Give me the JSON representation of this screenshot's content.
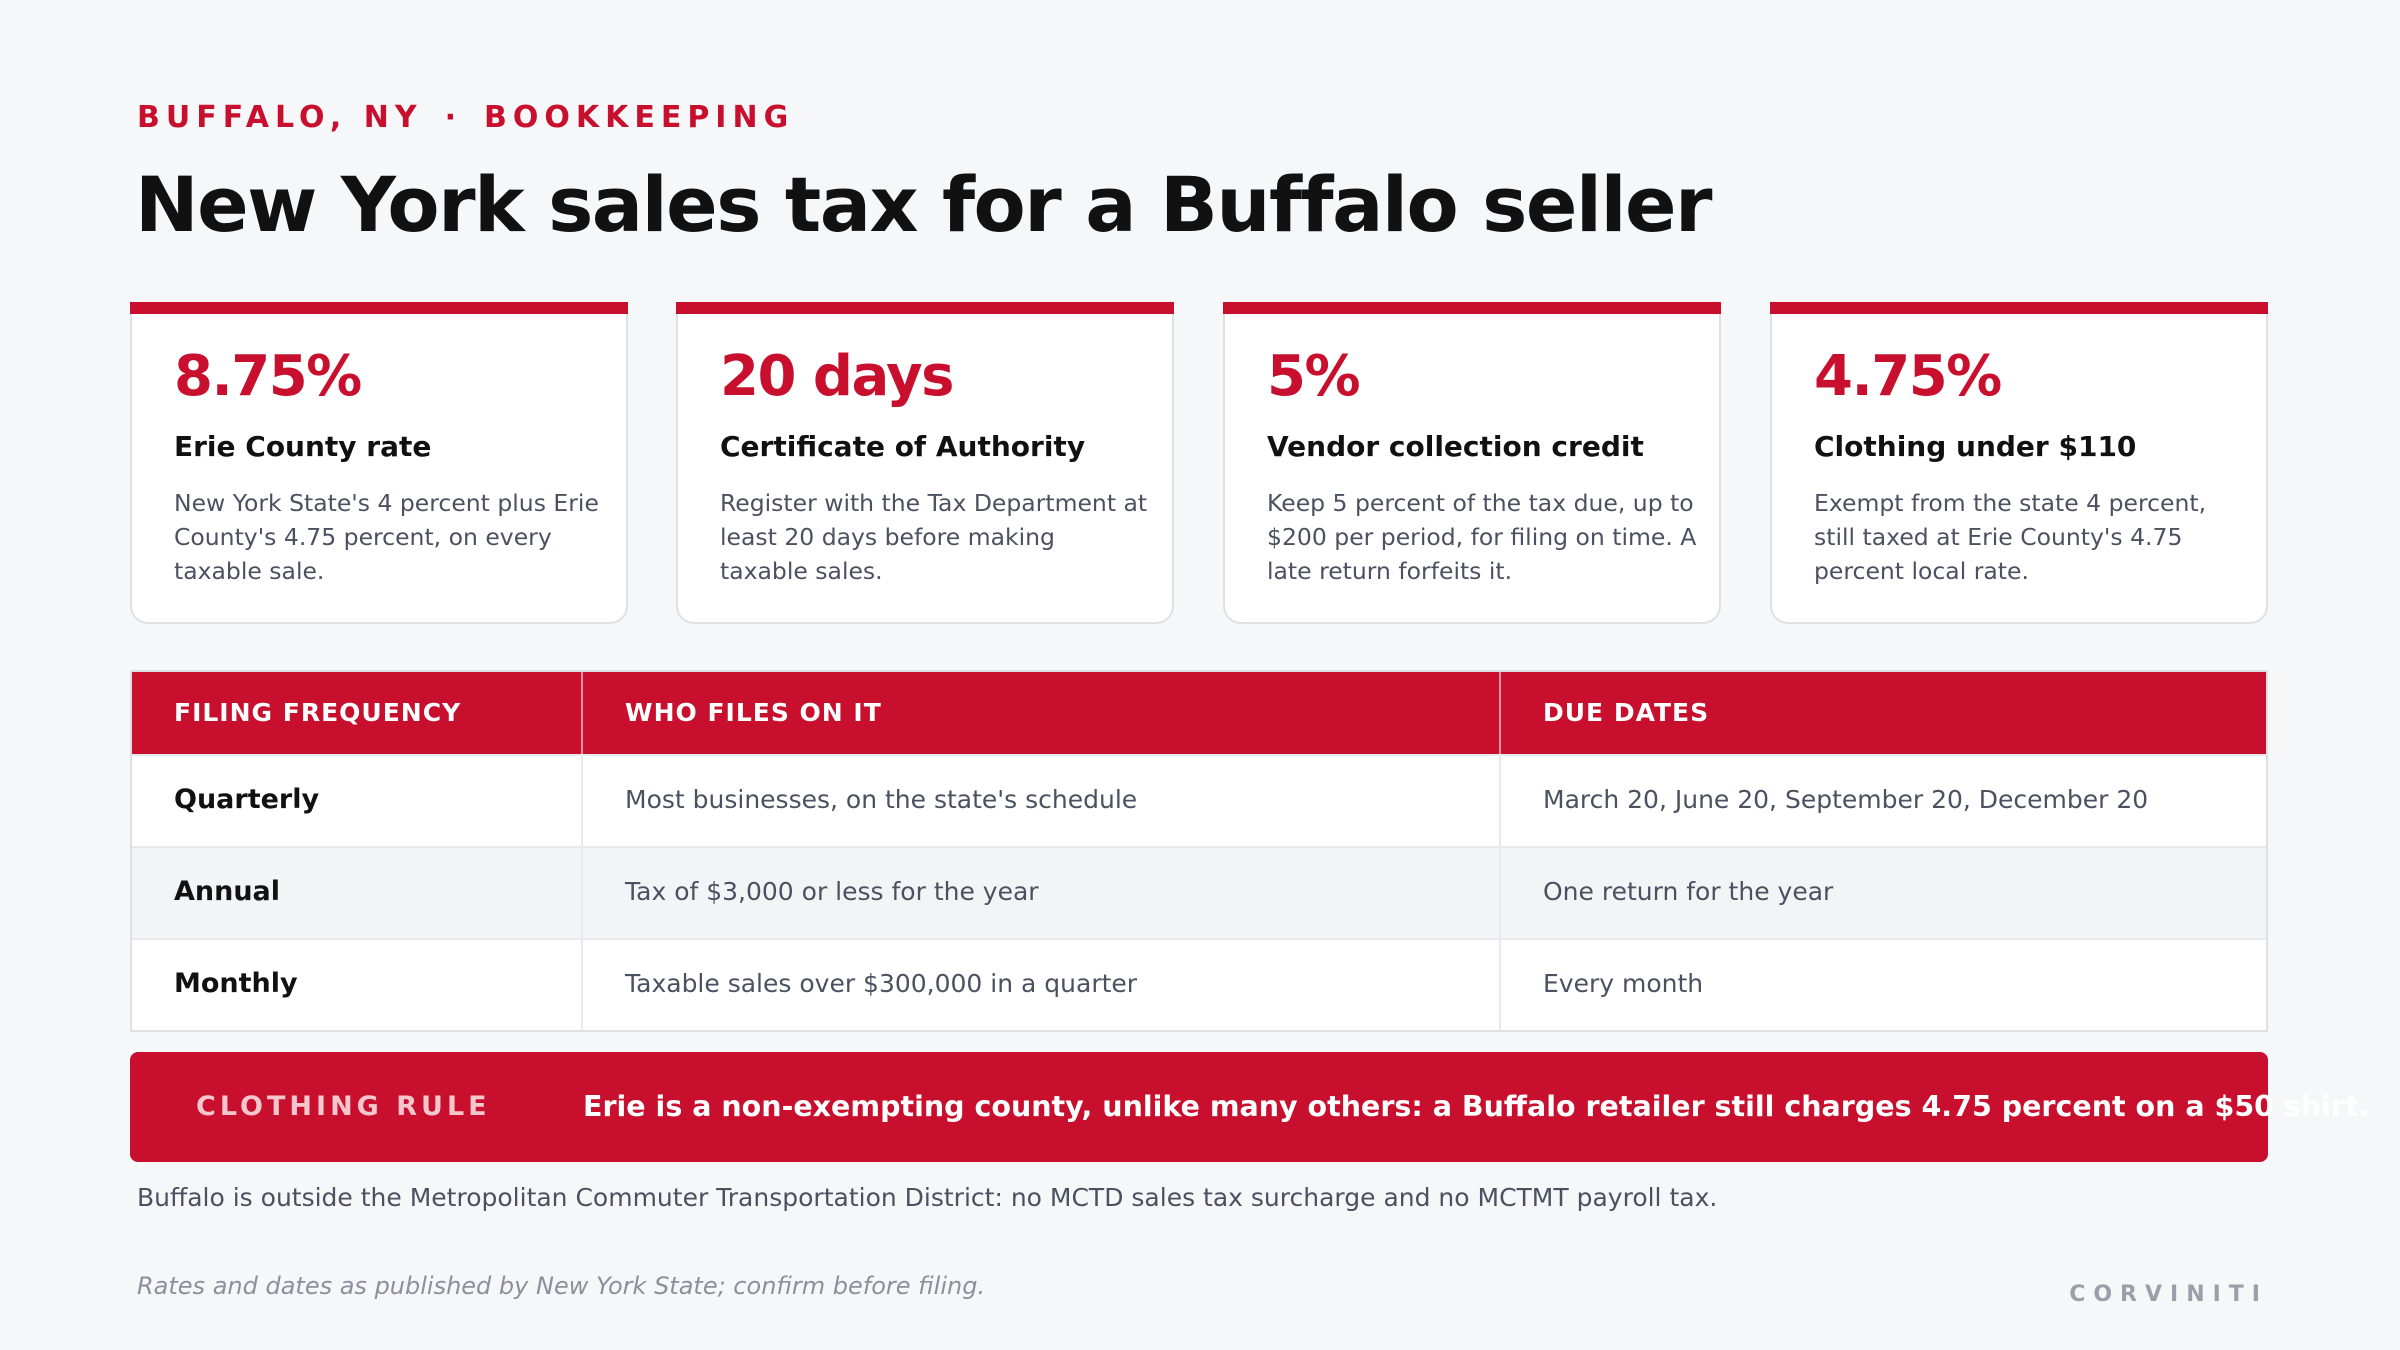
{
  "header": {
    "eyebrow_location": "BUFFALO, NY",
    "eyebrow_separator": "·",
    "eyebrow_topic": "BOOKKEEPING",
    "title": "New York sales tax for a Buffalo seller"
  },
  "cards": [
    {
      "stat": "8.75%",
      "heading": "Erie County rate",
      "body": "New York State's 4 percent plus Erie County's 4.75 percent, on every taxable sale."
    },
    {
      "stat": "20 days",
      "heading": "Certificate of Authority",
      "body": "Register with the Tax Department at least 20 days before making taxable sales."
    },
    {
      "stat": "5%",
      "heading": "Vendor collection credit",
      "body": "Keep 5 percent of the tax due, up to $200 per period, for filing on time. A late return forfeits it."
    },
    {
      "stat": "4.75%",
      "heading": "Clothing under $110",
      "body": "Exempt from the state 4 percent, still taxed at Erie County's 4.75 percent local rate."
    }
  ],
  "table": {
    "columns": [
      "FILING FREQUENCY",
      "WHO FILES ON IT",
      "DUE DATES"
    ],
    "rows": [
      [
        "Quarterly",
        "Most businesses, on the state's schedule",
        "March 20, June 20, September 20, December 20"
      ],
      [
        "Annual",
        "Tax of $3,000 or less for the year",
        "One return for the year"
      ],
      [
        "Monthly",
        "Taxable sales over $300,000 in a quarter",
        "Every month"
      ]
    ]
  },
  "banner": {
    "label": "CLOTHING RULE",
    "text": "Erie is a non-exempting county, unlike many others: a Buffalo retailer still charges 4.75 percent on a $50 shirt."
  },
  "note": "Buffalo is outside the Metropolitan Commuter Transportation District: no MCTD sales tax surcharge and no MCTMT payroll tax.",
  "footer": {
    "disclaimer": "Rates and dates as published by New York State; confirm before filing.",
    "brand": "CORVINITI"
  },
  "colors": {
    "accent": "#c8102e",
    "background": "#f6f7f9",
    "text": "#111111",
    "muted": "#4a5160"
  }
}
